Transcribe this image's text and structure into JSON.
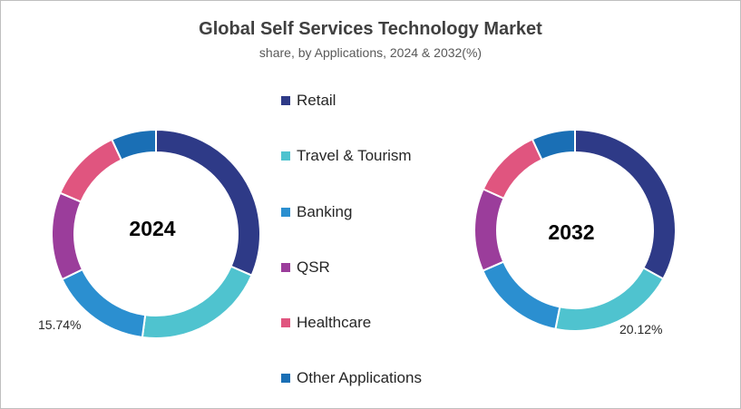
{
  "chart_data": {
    "type": "pie",
    "title": "Global Self Services Technology Market",
    "subtitle": "share, by Applications, 2024 & 2032(%)",
    "legend_position": "center",
    "categories": [
      "Retail",
      "Travel & Tourism",
      "Banking",
      "QSR",
      "Healthcare",
      "Other Applications"
    ],
    "colors": [
      "#2e3a87",
      "#4fc3cf",
      "#2b8fd0",
      "#9b3d9b",
      "#e0557f",
      "#1a6fb5"
    ],
    "series": [
      {
        "name": "2024",
        "values": [
          31.5,
          20.6,
          15.74,
          13.6,
          11.6,
          6.96
        ],
        "labeled_value": "15.74%"
      },
      {
        "name": "2032",
        "values": [
          33.0,
          20.12,
          15.3,
          13.3,
          11.3,
          6.98
        ],
        "labeled_value": "20.12%"
      }
    ]
  }
}
